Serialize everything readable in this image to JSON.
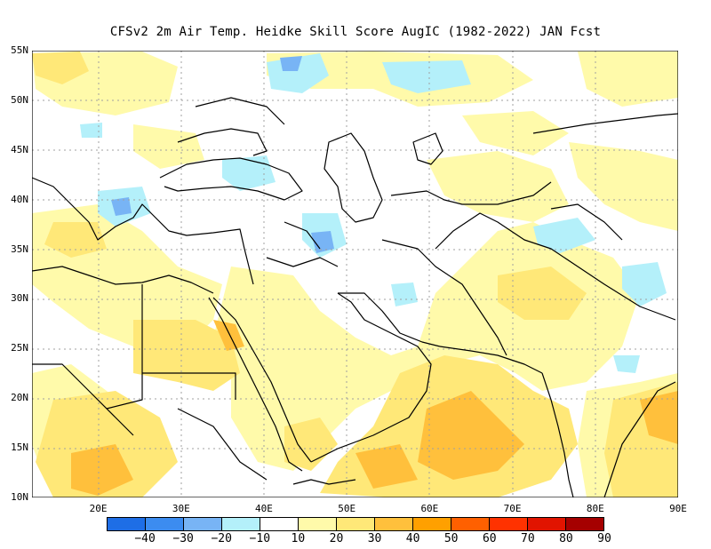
{
  "title": "CFSv2  2m Air Temp. Heidke Skill Score AugIC (1982-2022) JAN Fcst",
  "lat_labels": [
    {
      "text": "55N",
      "lat": 55
    },
    {
      "text": "50N",
      "lat": 50
    },
    {
      "text": "45N",
      "lat": 45
    },
    {
      "text": "40N",
      "lat": 40
    },
    {
      "text": "35N",
      "lat": 35
    },
    {
      "text": "30N",
      "lat": 30
    },
    {
      "text": "25N",
      "lat": 25
    },
    {
      "text": "20N",
      "lat": 20
    },
    {
      "text": "15N",
      "lat": 15
    },
    {
      "text": "10N",
      "lat": 10
    }
  ],
  "lon_labels": [
    {
      "text": "20E",
      "lon": 20
    },
    {
      "text": "30E",
      "lon": 30
    },
    {
      "text": "40E",
      "lon": 40
    },
    {
      "text": "50E",
      "lon": 50
    },
    {
      "text": "60E",
      "lon": 60
    },
    {
      "text": "70E",
      "lon": 70
    },
    {
      "text": "80E",
      "lon": 80
    },
    {
      "text": "90E",
      "lon": 90
    }
  ],
  "extent": {
    "lon_min": 12,
    "lon_max": 90,
    "lat_min": 10,
    "lat_max": 55
  },
  "colorbar": {
    "colors": [
      "#1e6ee6",
      "#3c8cf0",
      "#78b4f5",
      "#b4f0fa",
      "#ffffff",
      "#fffaaa",
      "#ffe878",
      "#ffc03c",
      "#ffa000",
      "#ff6000",
      "#ff3200",
      "#e11400",
      "#a50000"
    ],
    "labels": [
      "−40",
      "−30",
      "−20",
      "−10",
      "10",
      "20",
      "30",
      "40",
      "50",
      "60",
      "70",
      "80",
      "90"
    ]
  },
  "map": {
    "background": "#ffffff",
    "grid_color": "#a0a0a0",
    "coast_color": "#000000"
  }
}
